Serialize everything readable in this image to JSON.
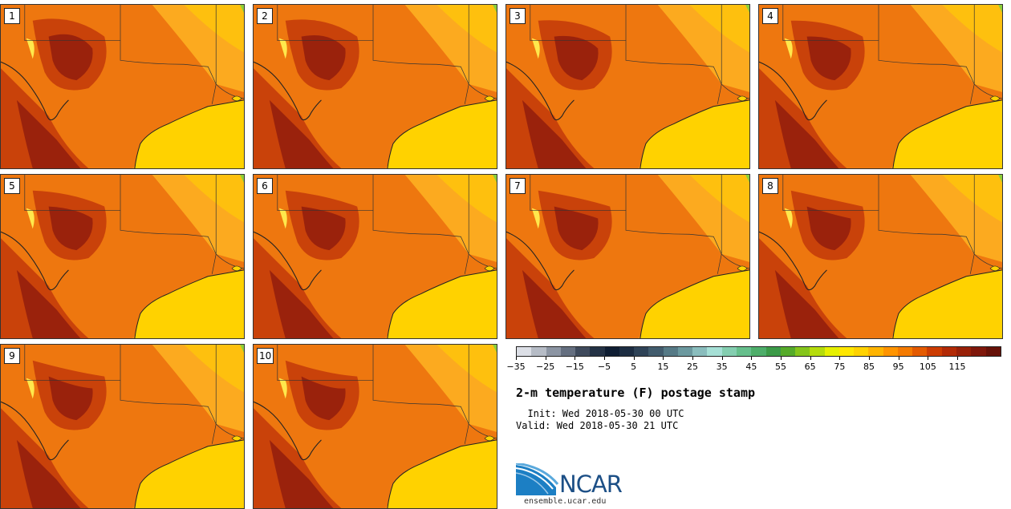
{
  "stamps": [
    {
      "label": "1"
    },
    {
      "label": "2"
    },
    {
      "label": "3"
    },
    {
      "label": "4"
    },
    {
      "label": "5"
    },
    {
      "label": "6"
    },
    {
      "label": "7"
    },
    {
      "label": "8"
    },
    {
      "label": "9"
    },
    {
      "label": "10"
    }
  ],
  "colorbar": {
    "colors": [
      "#dcdfe6",
      "#b6bcc6",
      "#8c95a3",
      "#656f80",
      "#3f4a5c",
      "#243245",
      "#0f1e33",
      "#1d2d42",
      "#2f4357",
      "#425c6d",
      "#567a86",
      "#6c999f",
      "#8abdbd",
      "#a6e0d6",
      "#84ceb0",
      "#66bf8c",
      "#4eae6a",
      "#3c9b48",
      "#55ab2a",
      "#85c51b",
      "#b5dc0c",
      "#e6f000",
      "#ffe700",
      "#ffd200",
      "#ffb400",
      "#ff9400",
      "#f47a00",
      "#e45a00",
      "#cc3c02",
      "#b22a06",
      "#982008",
      "#7f170b",
      "#661108"
    ],
    "tick_labels": [
      "−35",
      "−25",
      "−15",
      "−5",
      "5",
      "15",
      "25",
      "35",
      "45",
      "55",
      "65",
      "75",
      "85",
      "95",
      "105",
      "115"
    ]
  },
  "title": "2-m temperature (F) postage stamp",
  "init": "  Init: Wed 2018-05-30 00 UTC",
  "valid": "Valid: Wed 2018-05-30 21 UTC",
  "logo": {
    "text": "NCAR",
    "url": "ensemble.ucar.edu",
    "accent": "#1c4f86"
  },
  "map_colors": {
    "hot_dark": "#8e1a0c",
    "hot": "#c9420a",
    "warm": "#e8660b",
    "mid": "#f58d14",
    "mild": "#fcaa1f",
    "gulf": "#ffd200",
    "cool_yellow": "#ffe84c",
    "green": "#8ccf3a"
  }
}
